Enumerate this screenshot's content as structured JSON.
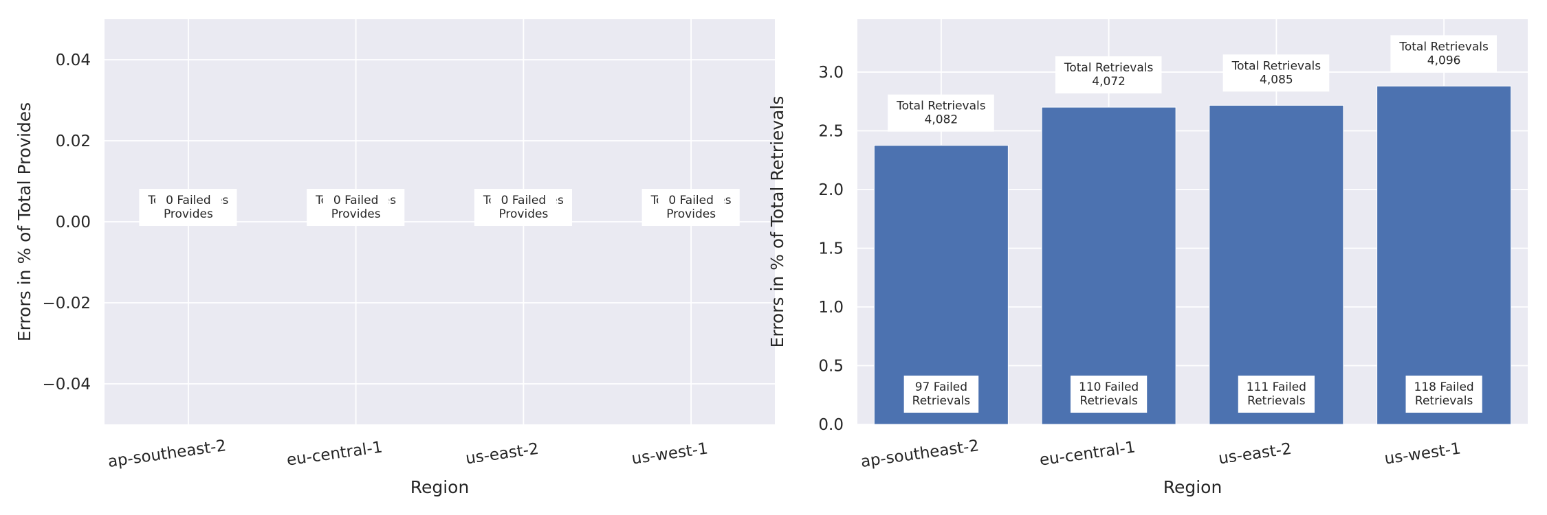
{
  "chart_data": [
    {
      "type": "bar",
      "categories": [
        "ap-southeast-2",
        "eu-central-1",
        "us-east-2",
        "us-west-1"
      ],
      "values": [
        0,
        0,
        0,
        0
      ],
      "xlabel": "Region",
      "ylabel": "Errors in % of Total Provides",
      "ylim": [
        -0.05,
        0.05
      ],
      "yticks": [
        "0.04",
        "0.02",
        "0.00",
        "−0.02",
        "−0.04"
      ],
      "grid": true,
      "annotations": {
        "total_label_lines": [
          "Total Provides",
          "0"
        ],
        "failed_label_lines": [
          [
            "0 Failed",
            "Provides"
          ],
          [
            "0 Failed",
            "Provides"
          ],
          [
            "0 Failed",
            "Provides"
          ],
          [
            "0 Failed",
            "Provides"
          ]
        ]
      },
      "colors": {
        "bar": "#4c72b0",
        "background": "#eaeaf2",
        "grid": "#ffffff"
      }
    },
    {
      "type": "bar",
      "categories": [
        "ap-southeast-2",
        "eu-central-1",
        "us-east-2",
        "us-west-1"
      ],
      "values": [
        2.376,
        2.701,
        2.717,
        2.881
      ],
      "xlabel": "Region",
      "ylabel": "Errors in % of Total Retrievals",
      "ylim": [
        0,
        3.45
      ],
      "yticks": [
        "0.0",
        "0.5",
        "1.0",
        "1.5",
        "2.0",
        "2.5",
        "3.0"
      ],
      "grid": true,
      "annotations": {
        "total_label_lines": [
          [
            "Total Retrievals",
            "4,082"
          ],
          [
            "Total Retrievals",
            "4,072"
          ],
          [
            "Total Retrievals",
            "4,085"
          ],
          [
            "Total Retrievals",
            "4,096"
          ]
        ],
        "failed_label_lines": [
          [
            "97 Failed",
            "Retrievals"
          ],
          [
            "110 Failed",
            "Retrievals"
          ],
          [
            "111 Failed",
            "Retrievals"
          ],
          [
            "118 Failed",
            "Retrievals"
          ]
        ]
      },
      "colors": {
        "bar": "#4c72b0",
        "background": "#eaeaf2",
        "grid": "#ffffff"
      }
    }
  ]
}
